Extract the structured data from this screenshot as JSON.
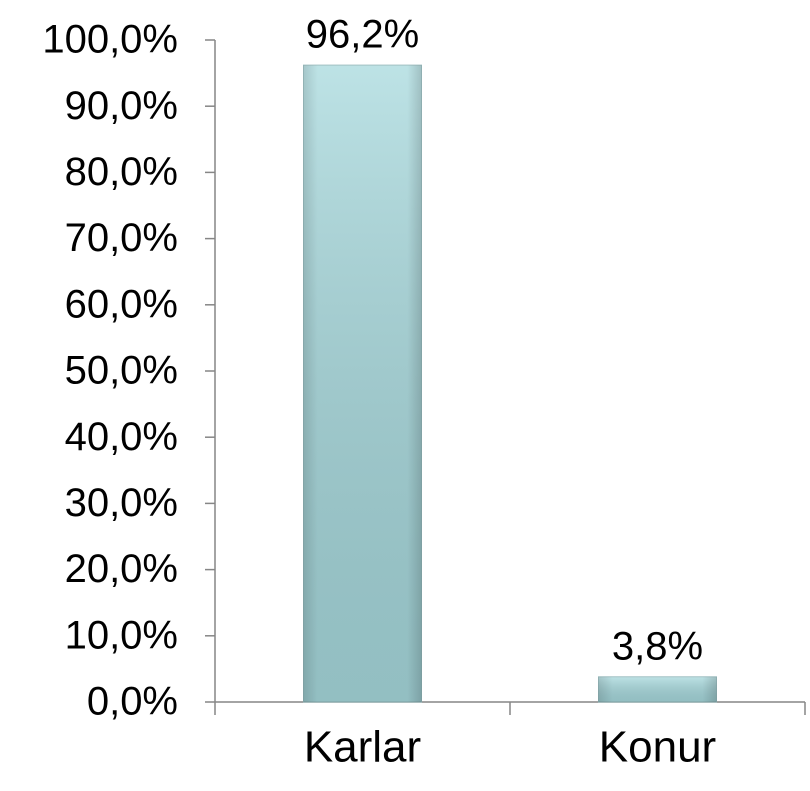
{
  "chart_data": {
    "type": "bar",
    "categories": [
      "Karlar",
      "Konur"
    ],
    "values": [
      96.2,
      3.8
    ],
    "value_labels": [
      "96,2%",
      "3,8%"
    ],
    "color": "#a7d9dd",
    "ylim": [
      0,
      100
    ],
    "yticks": [
      {
        "value": 0,
        "label": "0,0%"
      },
      {
        "value": 10,
        "label": "10,0%"
      },
      {
        "value": 20,
        "label": "20,0%"
      },
      {
        "value": 30,
        "label": "30,0%"
      },
      {
        "value": 40,
        "label": "40,0%"
      },
      {
        "value": 50,
        "label": "50,0%"
      },
      {
        "value": 60,
        "label": "60,0%"
      },
      {
        "value": 70,
        "label": "70,0%"
      },
      {
        "value": 80,
        "label": "80,0%"
      },
      {
        "value": 90,
        "label": "90,0%"
      },
      {
        "value": 100,
        "label": "100,0%"
      }
    ],
    "grid": false
  }
}
